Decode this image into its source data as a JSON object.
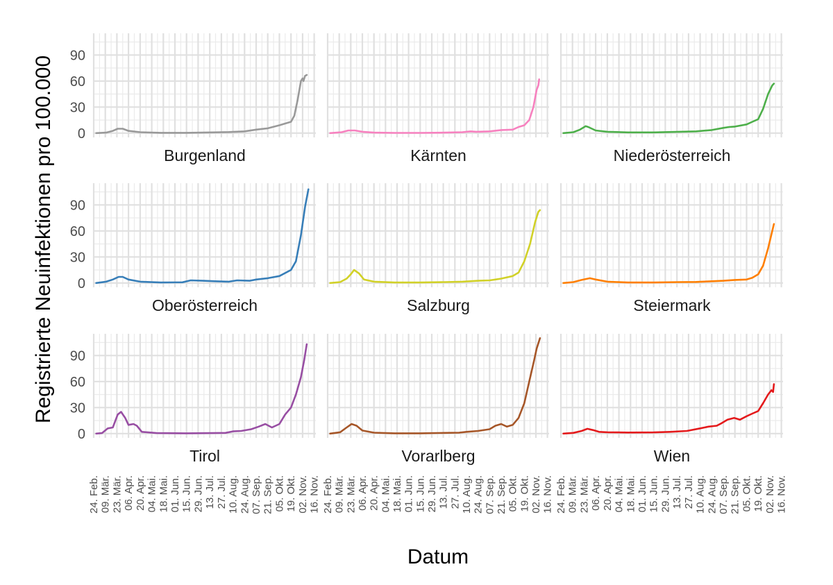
{
  "chart_data": {
    "type": "line",
    "layout": "facet-3x3",
    "xlabel": "Datum",
    "ylabel": "Registrierte Neuinfektionen pro 100.000",
    "y_ticks": [
      0,
      30,
      60,
      90
    ],
    "ylim": [
      -5,
      115
    ],
    "x_range": [
      "2020-02-24",
      "2020-11-18"
    ],
    "x_ticks": [
      {
        "date": "2020-02-24",
        "label": "24. Feb."
      },
      {
        "date": "2020-03-09",
        "label": "09. Mär."
      },
      {
        "date": "2020-03-23",
        "label": "23. Mär."
      },
      {
        "date": "2020-04-06",
        "label": "06. Apr."
      },
      {
        "date": "2020-04-20",
        "label": "20. Apr."
      },
      {
        "date": "2020-05-04",
        "label": "04. Mai."
      },
      {
        "date": "2020-05-18",
        "label": "18. Mai."
      },
      {
        "date": "2020-06-01",
        "label": "01. Jun."
      },
      {
        "date": "2020-06-15",
        "label": "15. Jun."
      },
      {
        "date": "2020-06-29",
        "label": "29. Jun."
      },
      {
        "date": "2020-07-13",
        "label": "13. Jul."
      },
      {
        "date": "2020-07-27",
        "label": "27. Jul."
      },
      {
        "date": "2020-08-10",
        "label": "10. Aug."
      },
      {
        "date": "2020-08-24",
        "label": "24. Aug."
      },
      {
        "date": "2020-09-07",
        "label": "07. Sep."
      },
      {
        "date": "2020-09-21",
        "label": "21. Sep."
      },
      {
        "date": "2020-10-05",
        "label": "05. Okt."
      },
      {
        "date": "2020-10-19",
        "label": "19. Okt."
      },
      {
        "date": "2020-11-02",
        "label": "02. Nov."
      },
      {
        "date": "2020-11-16",
        "label": "16. Nov."
      }
    ],
    "grid": true,
    "panels": [
      {
        "name": "Burgenland",
        "color": "#999999",
        "points": [
          [
            "2020-02-27",
            0
          ],
          [
            "2020-03-10",
            0.5
          ],
          [
            "2020-03-18",
            2.5
          ],
          [
            "2020-03-24",
            5
          ],
          [
            "2020-03-30",
            5
          ],
          [
            "2020-04-06",
            2.5
          ],
          [
            "2020-04-20",
            1
          ],
          [
            "2020-05-15",
            0.3
          ],
          [
            "2020-06-15",
            0.3
          ],
          [
            "2020-07-15",
            0.8
          ],
          [
            "2020-08-05",
            1.2
          ],
          [
            "2020-08-24",
            2
          ],
          [
            "2020-09-07",
            4
          ],
          [
            "2020-09-21",
            5.5
          ],
          [
            "2020-10-05",
            9
          ],
          [
            "2020-10-12",
            11
          ],
          [
            "2020-10-19",
            13
          ],
          [
            "2020-10-23",
            20
          ],
          [
            "2020-10-27",
            38
          ],
          [
            "2020-10-31",
            60
          ],
          [
            "2020-11-02",
            63
          ],
          [
            "2020-11-03",
            60
          ],
          [
            "2020-11-05",
            66
          ],
          [
            "2020-11-07",
            67
          ]
        ]
      },
      {
        "name": "Kärnten",
        "color": "#f781bf",
        "points": [
          [
            "2020-02-27",
            0
          ],
          [
            "2020-03-12",
            1
          ],
          [
            "2020-03-20",
            3
          ],
          [
            "2020-03-28",
            3
          ],
          [
            "2020-04-06",
            1.5
          ],
          [
            "2020-04-20",
            0.5
          ],
          [
            "2020-05-15",
            0.2
          ],
          [
            "2020-06-15",
            0.2
          ],
          [
            "2020-07-15",
            0.5
          ],
          [
            "2020-08-05",
            1
          ],
          [
            "2020-08-15",
            2
          ],
          [
            "2020-08-22",
            1.5
          ],
          [
            "2020-09-07",
            2
          ],
          [
            "2020-09-21",
            3.5
          ],
          [
            "2020-10-05",
            4
          ],
          [
            "2020-10-12",
            7
          ],
          [
            "2020-10-19",
            9
          ],
          [
            "2020-10-25",
            15
          ],
          [
            "2020-10-30",
            30
          ],
          [
            "2020-11-03",
            50
          ],
          [
            "2020-11-05",
            55
          ],
          [
            "2020-11-06",
            62
          ]
        ]
      },
      {
        "name": "Niederösterreich",
        "color": "#4daf4a",
        "points": [
          [
            "2020-02-27",
            0
          ],
          [
            "2020-03-10",
            1
          ],
          [
            "2020-03-18",
            4
          ],
          [
            "2020-03-25",
            8
          ],
          [
            "2020-03-28",
            7
          ],
          [
            "2020-04-06",
            3
          ],
          [
            "2020-04-20",
            1.5
          ],
          [
            "2020-05-15",
            0.8
          ],
          [
            "2020-06-15",
            0.8
          ],
          [
            "2020-07-15",
            1.5
          ],
          [
            "2020-08-05",
            2
          ],
          [
            "2020-08-24",
            3.5
          ],
          [
            "2020-09-07",
            6
          ],
          [
            "2020-09-14",
            7
          ],
          [
            "2020-09-21",
            7.5
          ],
          [
            "2020-10-05",
            10
          ],
          [
            "2020-10-12",
            13
          ],
          [
            "2020-10-19",
            16
          ],
          [
            "2020-10-25",
            28
          ],
          [
            "2020-10-31",
            45
          ],
          [
            "2020-11-05",
            55
          ],
          [
            "2020-11-07",
            57
          ]
        ]
      },
      {
        "name": "Oberösterreich",
        "color": "#377eb8",
        "points": [
          [
            "2020-02-27",
            0
          ],
          [
            "2020-03-10",
            1.5
          ],
          [
            "2020-03-18",
            4
          ],
          [
            "2020-03-25",
            7
          ],
          [
            "2020-03-30",
            7
          ],
          [
            "2020-04-06",
            4
          ],
          [
            "2020-04-20",
            1.5
          ],
          [
            "2020-05-15",
            0.5
          ],
          [
            "2020-06-10",
            0.8
          ],
          [
            "2020-06-20",
            3
          ],
          [
            "2020-07-05",
            2.5
          ],
          [
            "2020-07-20",
            2
          ],
          [
            "2020-08-05",
            1.5
          ],
          [
            "2020-08-15",
            3
          ],
          [
            "2020-08-30",
            2.5
          ],
          [
            "2020-09-07",
            4
          ],
          [
            "2020-09-21",
            5.5
          ],
          [
            "2020-10-05",
            8
          ],
          [
            "2020-10-19",
            15
          ],
          [
            "2020-10-25",
            25
          ],
          [
            "2020-10-31",
            55
          ],
          [
            "2020-11-05",
            88
          ],
          [
            "2020-11-09",
            108
          ]
        ]
      },
      {
        "name": "Salzburg",
        "color": "#d1d128",
        "points": [
          [
            "2020-02-27",
            0
          ],
          [
            "2020-03-10",
            1
          ],
          [
            "2020-03-18",
            5
          ],
          [
            "2020-03-23",
            10
          ],
          [
            "2020-03-27",
            15
          ],
          [
            "2020-04-02",
            11
          ],
          [
            "2020-04-08",
            4
          ],
          [
            "2020-04-20",
            1.5
          ],
          [
            "2020-05-15",
            0.5
          ],
          [
            "2020-06-15",
            0.5
          ],
          [
            "2020-07-15",
            1
          ],
          [
            "2020-08-05",
            1.5
          ],
          [
            "2020-08-24",
            2.5
          ],
          [
            "2020-09-07",
            3
          ],
          [
            "2020-09-14",
            4
          ],
          [
            "2020-09-21",
            5
          ],
          [
            "2020-10-05",
            8
          ],
          [
            "2020-10-12",
            12
          ],
          [
            "2020-10-19",
            25
          ],
          [
            "2020-10-26",
            45
          ],
          [
            "2020-11-01",
            70
          ],
          [
            "2020-11-05",
            82
          ],
          [
            "2020-11-07",
            84
          ]
        ]
      },
      {
        "name": "Steiermark",
        "color": "#ff7f00",
        "points": [
          [
            "2020-02-27",
            0
          ],
          [
            "2020-03-10",
            1
          ],
          [
            "2020-03-20",
            3.5
          ],
          [
            "2020-03-30",
            5.5
          ],
          [
            "2020-04-06",
            4
          ],
          [
            "2020-04-20",
            1.5
          ],
          [
            "2020-05-15",
            0.5
          ],
          [
            "2020-06-15",
            0.5
          ],
          [
            "2020-07-15",
            1
          ],
          [
            "2020-08-05",
            1.2
          ],
          [
            "2020-08-24",
            2
          ],
          [
            "2020-09-07",
            2.5
          ],
          [
            "2020-09-21",
            3.5
          ],
          [
            "2020-10-05",
            4
          ],
          [
            "2020-10-12",
            6
          ],
          [
            "2020-10-19",
            10
          ],
          [
            "2020-10-25",
            20
          ],
          [
            "2020-10-31",
            40
          ],
          [
            "2020-11-05",
            60
          ],
          [
            "2020-11-07",
            68
          ]
        ]
      },
      {
        "name": "Tirol",
        "color": "#984ea3",
        "points": [
          [
            "2020-02-27",
            0
          ],
          [
            "2020-03-05",
            0.5
          ],
          [
            "2020-03-12",
            6
          ],
          [
            "2020-03-18",
            7
          ],
          [
            "2020-03-24",
            22
          ],
          [
            "2020-03-28",
            25
          ],
          [
            "2020-04-02",
            18
          ],
          [
            "2020-04-06",
            10
          ],
          [
            "2020-04-12",
            11
          ],
          [
            "2020-04-16",
            9
          ],
          [
            "2020-04-22",
            2
          ],
          [
            "2020-05-10",
            0.5
          ],
          [
            "2020-06-15",
            0.3
          ],
          [
            "2020-07-15",
            0.5
          ],
          [
            "2020-08-01",
            0.8
          ],
          [
            "2020-08-10",
            2.5
          ],
          [
            "2020-08-20",
            3
          ],
          [
            "2020-09-01",
            5
          ],
          [
            "2020-09-10",
            8
          ],
          [
            "2020-09-18",
            11
          ],
          [
            "2020-09-26",
            7
          ],
          [
            "2020-10-05",
            11
          ],
          [
            "2020-10-12",
            22
          ],
          [
            "2020-10-19",
            30
          ],
          [
            "2020-10-25",
            45
          ],
          [
            "2020-10-31",
            65
          ],
          [
            "2020-11-04",
            85
          ],
          [
            "2020-11-07",
            103
          ]
        ]
      },
      {
        "name": "Vorarlberg",
        "color": "#a65628",
        "points": [
          [
            "2020-02-27",
            0
          ],
          [
            "2020-03-10",
            1.5
          ],
          [
            "2020-03-18",
            7
          ],
          [
            "2020-03-24",
            11
          ],
          [
            "2020-03-30",
            9
          ],
          [
            "2020-04-06",
            3.5
          ],
          [
            "2020-04-20",
            1
          ],
          [
            "2020-05-15",
            0.3
          ],
          [
            "2020-06-15",
            0.3
          ],
          [
            "2020-07-15",
            0.8
          ],
          [
            "2020-08-01",
            1
          ],
          [
            "2020-08-10",
            2
          ],
          [
            "2020-08-24",
            3
          ],
          [
            "2020-09-07",
            5
          ],
          [
            "2020-09-14",
            9
          ],
          [
            "2020-09-21",
            11
          ],
          [
            "2020-09-28",
            8
          ],
          [
            "2020-10-05",
            10
          ],
          [
            "2020-10-12",
            18
          ],
          [
            "2020-10-19",
            35
          ],
          [
            "2020-10-25",
            60
          ],
          [
            "2020-10-31",
            85
          ],
          [
            "2020-11-03",
            98
          ],
          [
            "2020-11-07",
            110
          ]
        ]
      },
      {
        "name": "Wien",
        "color": "#e41a1c",
        "points": [
          [
            "2020-02-27",
            0
          ],
          [
            "2020-03-10",
            0.8
          ],
          [
            "2020-03-20",
            3
          ],
          [
            "2020-03-27",
            5.5
          ],
          [
            "2020-04-03",
            4
          ],
          [
            "2020-04-10",
            2
          ],
          [
            "2020-04-20",
            1.5
          ],
          [
            "2020-05-15",
            1.2
          ],
          [
            "2020-06-15",
            1.3
          ],
          [
            "2020-07-05",
            2
          ],
          [
            "2020-07-25",
            3
          ],
          [
            "2020-08-10",
            6
          ],
          [
            "2020-08-20",
            8
          ],
          [
            "2020-08-30",
            9
          ],
          [
            "2020-09-05",
            12
          ],
          [
            "2020-09-12",
            16
          ],
          [
            "2020-09-20",
            18
          ],
          [
            "2020-09-27",
            16
          ],
          [
            "2020-10-05",
            20
          ],
          [
            "2020-10-12",
            23
          ],
          [
            "2020-10-19",
            26
          ],
          [
            "2020-10-25",
            35
          ],
          [
            "2020-10-31",
            45
          ],
          [
            "2020-11-04",
            50
          ],
          [
            "2020-11-06",
            48
          ],
          [
            "2020-11-07",
            57
          ]
        ]
      }
    ]
  }
}
